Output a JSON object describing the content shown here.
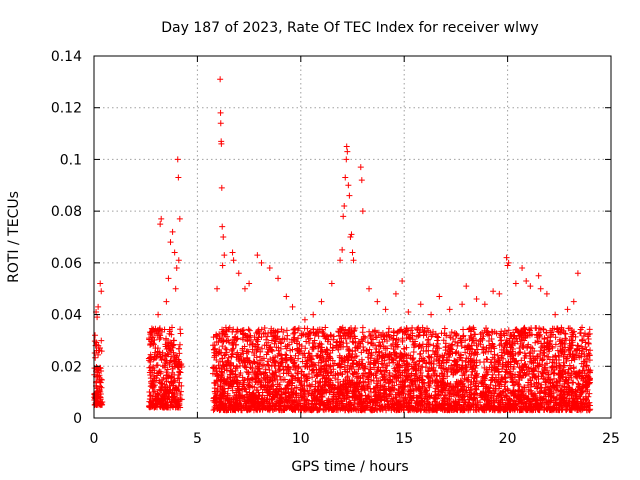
{
  "chart_data": {
    "type": "scatter",
    "title": "Day 187 of 2023, Rate Of TEC Index for receiver wlwy",
    "xlabel": "GPS time / hours",
    "ylabel": "ROTI / TECUs",
    "xlim": [
      0,
      25
    ],
    "ylim": [
      0,
      0.14
    ],
    "xticks": [
      0,
      5,
      10,
      15,
      20,
      25
    ],
    "yticks": [
      0,
      0.02,
      0.04,
      0.06,
      0.08,
      0.1,
      0.12,
      0.14
    ],
    "xtick_labels": [
      "0",
      "5",
      "10",
      "15",
      "20",
      "25"
    ],
    "ytick_labels": [
      "0",
      "0.02",
      "0.04",
      "0.06",
      "0.08",
      "0.1",
      "0.12",
      "0.14"
    ],
    "grid": true,
    "marker": "+",
    "color": "#ff0000",
    "series": [
      {
        "name": "ROTI",
        "points": [
          [
            0.05,
            0.032
          ],
          [
            0.1,
            0.041
          ],
          [
            0.15,
            0.039
          ],
          [
            0.2,
            0.043
          ],
          [
            0.3,
            0.052
          ],
          [
            0.35,
            0.049
          ],
          [
            0.08,
            0.028
          ],
          [
            0.12,
            0.026
          ],
          [
            2.8,
            0.031
          ],
          [
            3.1,
            0.04
          ],
          [
            3.2,
            0.075
          ],
          [
            3.25,
            0.077
          ],
          [
            3.6,
            0.054
          ],
          [
            3.7,
            0.068
          ],
          [
            3.8,
            0.072
          ],
          [
            3.9,
            0.064
          ],
          [
            4.0,
            0.058
          ],
          [
            4.05,
            0.1
          ],
          [
            4.08,
            0.093
          ],
          [
            4.1,
            0.061
          ],
          [
            4.15,
            0.077
          ],
          [
            3.5,
            0.045
          ],
          [
            3.95,
            0.05
          ],
          [
            5.95,
            0.05
          ],
          [
            6.1,
            0.131
          ],
          [
            6.12,
            0.118
          ],
          [
            6.13,
            0.114
          ],
          [
            6.15,
            0.107
          ],
          [
            6.16,
            0.106
          ],
          [
            6.18,
            0.089
          ],
          [
            6.2,
            0.074
          ],
          [
            6.25,
            0.07
          ],
          [
            6.3,
            0.063
          ],
          [
            6.22,
            0.059
          ],
          [
            6.7,
            0.064
          ],
          [
            6.75,
            0.061
          ],
          [
            7.0,
            0.056
          ],
          [
            7.3,
            0.05
          ],
          [
            7.5,
            0.052
          ],
          [
            7.9,
            0.063
          ],
          [
            8.1,
            0.06
          ],
          [
            8.5,
            0.058
          ],
          [
            8.9,
            0.054
          ],
          [
            9.3,
            0.047
          ],
          [
            9.6,
            0.043
          ],
          [
            10.2,
            0.038
          ],
          [
            10.6,
            0.04
          ],
          [
            11.0,
            0.045
          ],
          [
            11.5,
            0.052
          ],
          [
            11.9,
            0.061
          ],
          [
            12.0,
            0.065
          ],
          [
            12.05,
            0.078
          ],
          [
            12.1,
            0.082
          ],
          [
            12.15,
            0.093
          ],
          [
            12.2,
            0.1
          ],
          [
            12.22,
            0.105
          ],
          [
            12.25,
            0.103
          ],
          [
            12.3,
            0.09
          ],
          [
            12.35,
            0.086
          ],
          [
            12.4,
            0.07
          ],
          [
            12.45,
            0.071
          ],
          [
            12.5,
            0.064
          ],
          [
            12.55,
            0.061
          ],
          [
            12.9,
            0.097
          ],
          [
            12.95,
            0.092
          ],
          [
            13.0,
            0.08
          ],
          [
            13.3,
            0.05
          ],
          [
            13.7,
            0.045
          ],
          [
            14.1,
            0.042
          ],
          [
            14.6,
            0.048
          ],
          [
            14.9,
            0.053
          ],
          [
            15.2,
            0.041
          ],
          [
            15.8,
            0.044
          ],
          [
            16.3,
            0.04
          ],
          [
            16.7,
            0.047
          ],
          [
            17.2,
            0.042
          ],
          [
            17.8,
            0.044
          ],
          [
            18.0,
            0.051
          ],
          [
            18.5,
            0.046
          ],
          [
            18.9,
            0.044
          ],
          [
            19.3,
            0.049
          ],
          [
            19.6,
            0.048
          ],
          [
            19.95,
            0.062
          ],
          [
            20.0,
            0.059
          ],
          [
            20.05,
            0.06
          ],
          [
            20.4,
            0.052
          ],
          [
            20.7,
            0.058
          ],
          [
            20.9,
            0.053
          ],
          [
            21.1,
            0.051
          ],
          [
            21.5,
            0.055
          ],
          [
            21.6,
            0.05
          ],
          [
            21.9,
            0.048
          ],
          [
            22.3,
            0.04
          ],
          [
            22.9,
            0.042
          ],
          [
            23.2,
            0.045
          ],
          [
            23.4,
            0.056
          ],
          [
            23.6,
            0.035
          ],
          [
            23.9,
            0.029
          ],
          [
            16.0,
            0.01
          ],
          [
            19.0,
            0.012
          ],
          [
            10.0,
            0.011
          ],
          [
            8.0,
            0.005
          ],
          [
            9.0,
            0.006
          ]
        ],
        "dense_bands": [
          {
            "x_start": 0.0,
            "x_end": 0.4,
            "y_low": 0.005,
            "y_high": 0.03
          },
          {
            "x_start": 2.65,
            "x_end": 4.25,
            "y_low": 0.004,
            "y_high": 0.035
          },
          {
            "x_start": 5.75,
            "x_end": 24.0,
            "y_low": 0.003,
            "y_high": 0.035
          }
        ]
      }
    ]
  }
}
